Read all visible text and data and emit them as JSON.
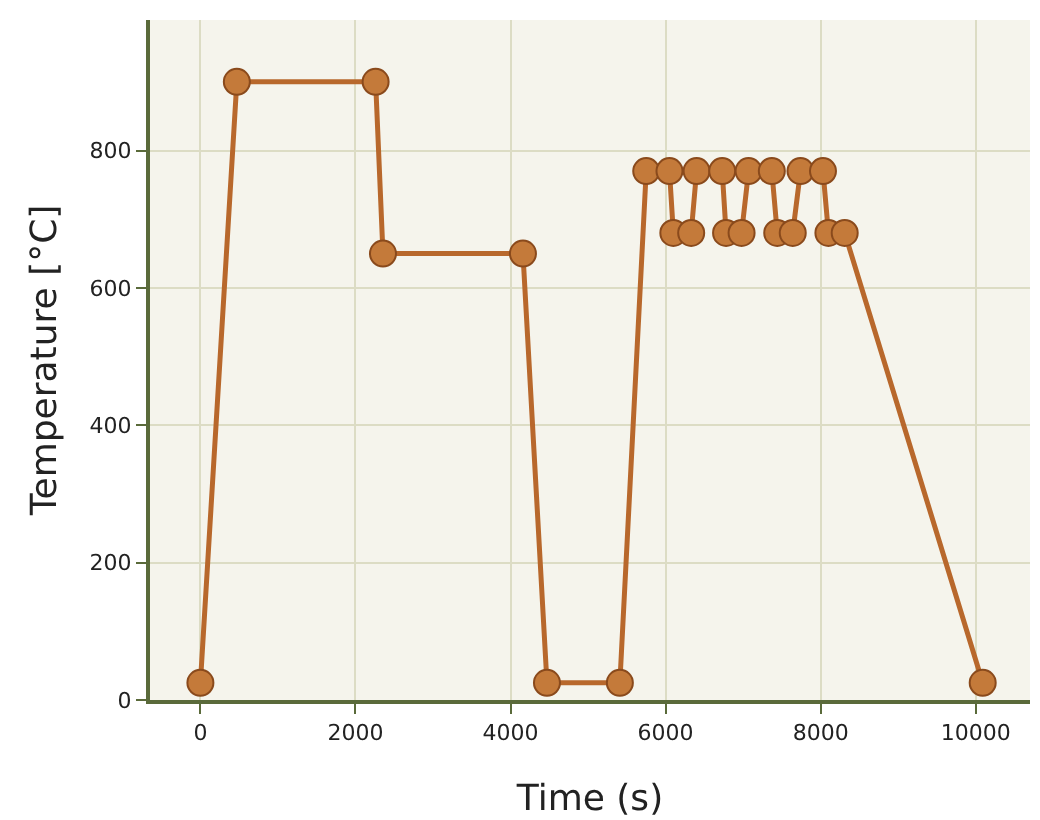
{
  "chart_data": {
    "type": "line",
    "xlabel": "Time (s)",
    "ylabel": "Temperature [°C]",
    "x": [
      0,
      470,
      2260,
      2355,
      4160,
      4470,
      5410,
      5750,
      6050,
      6100,
      6330,
      6400,
      6730,
      6780,
      6980,
      7070,
      7370,
      7440,
      7640,
      7740,
      8030,
      8100,
      8310,
      10090
    ],
    "series": [
      {
        "color": "#b8682c",
        "values": [
          25,
          900,
          900,
          650,
          650,
          25,
          25,
          770,
          770,
          680,
          680,
          770,
          770,
          680,
          680,
          770,
          770,
          680,
          680,
          770,
          770,
          680,
          680,
          25
        ]
      }
    ],
    "xlim": [
      -650,
      10700
    ],
    "xticks": [
      0,
      2000,
      4000,
      6000,
      8000,
      10000
    ],
    "ylim": [
      0,
      990
    ],
    "yticks": [
      0,
      200,
      400,
      600,
      800
    ],
    "grid": true,
    "marker": "circle",
    "line_style": "solid"
  }
}
